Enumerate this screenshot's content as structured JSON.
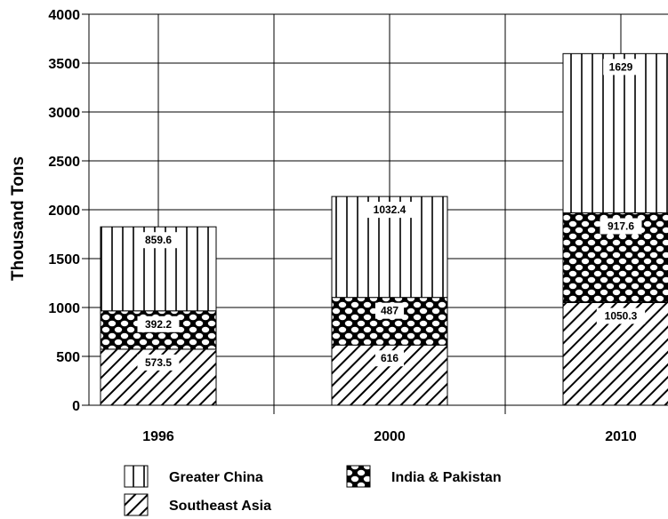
{
  "chart_data": {
    "type": "bar",
    "stacked": true,
    "title": "",
    "xlabel": "",
    "ylabel": "Thousand Tons",
    "categories": [
      "1996",
      "2000",
      "2010"
    ],
    "ylim": [
      0,
      4000
    ],
    "yticks": [
      0,
      500,
      1000,
      1500,
      2000,
      2500,
      3000,
      3500,
      4000
    ],
    "grid": true,
    "legend_position": "bottom",
    "series": [
      {
        "name": "Southeast Asia",
        "pattern": "diagonal-hatch",
        "values": [
          573.5,
          616,
          1050.3
        ],
        "labels": [
          "573.5",
          "616",
          "1050.3"
        ]
      },
      {
        "name": "India & Pakistan",
        "pattern": "honeycomb",
        "values": [
          392.2,
          487,
          917.6
        ],
        "labels": [
          "392.2",
          "487",
          "917.6"
        ]
      },
      {
        "name": "Greater China",
        "pattern": "vertical-lines",
        "values": [
          859.6,
          1032.4,
          1629
        ],
        "labels": [
          "859.6",
          "1032.4",
          "1629"
        ]
      }
    ],
    "colors": {
      "ink": "#000000",
      "background": "#ffffff",
      "grid": "#000000"
    }
  }
}
